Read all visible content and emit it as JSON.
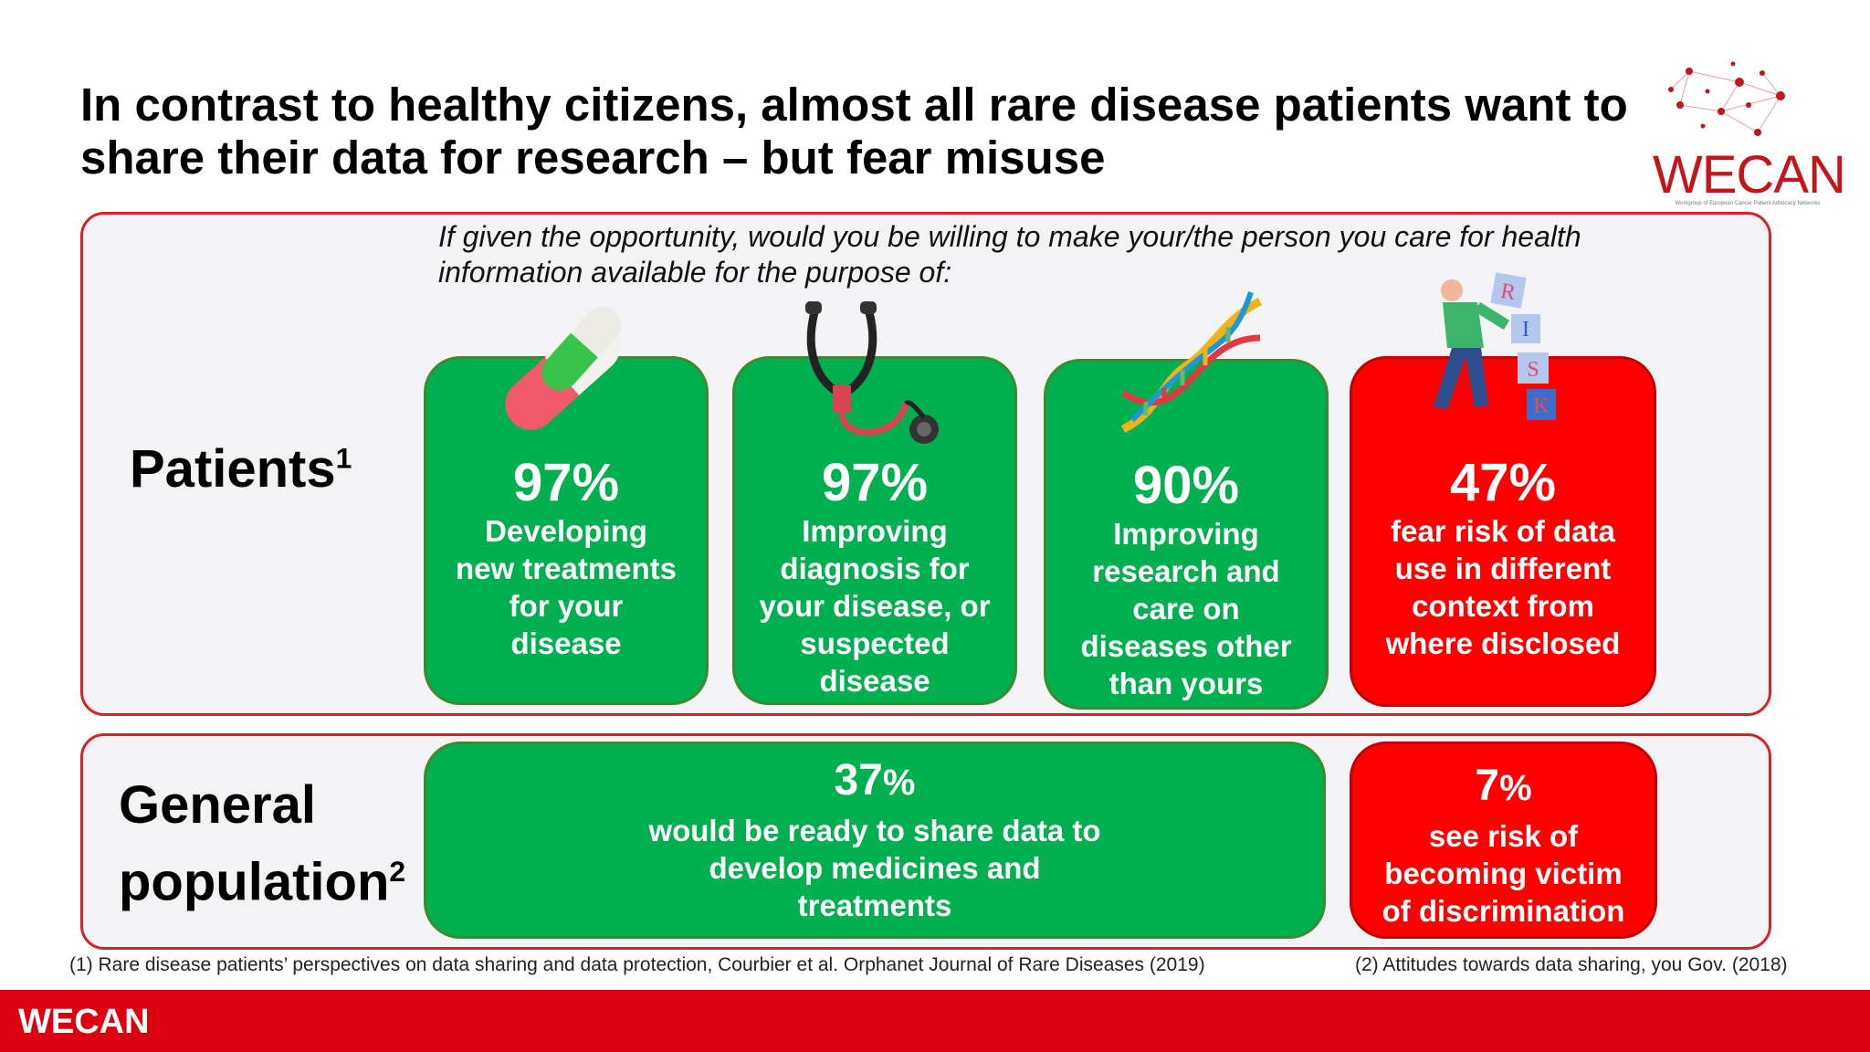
{
  "title": "In contrast to healthy citizens, almost all rare disease patients want to share their data for research – but fear misuse",
  "logo": {
    "text_main": "WECAN",
    "subtitle": "Workgroup of European Cancer Patient Advocacy Networks"
  },
  "question": "If given the opportunity, would you be willing to make your/the person you care for health information available for the purpose of:",
  "patients": {
    "label": "Patients",
    "sup": "1",
    "cards": [
      {
        "pct": "97%",
        "desc": "Developing new treatments for your disease",
        "color": "#00b050",
        "icon": "pill-capsule-icon"
      },
      {
        "pct": "97%",
        "desc": "Improving diagnosis for your disease, or suspected disease",
        "color": "#00b050",
        "icon": "stethoscope-icon"
      },
      {
        "pct": "90%",
        "desc": "Improving research and care on diseases other than yours",
        "color": "#00b050",
        "icon": "dna-icon"
      },
      {
        "pct": "47%",
        "desc": "fear risk of data use in different context from where disclosed",
        "color": "#ff0000",
        "icon": "risk-blocks-icon"
      }
    ]
  },
  "general": {
    "label_line1": "General",
    "label_line2": "population",
    "sup": "2",
    "cards": [
      {
        "pct_num": "37",
        "pct_sign": "%",
        "desc": "would be ready to share data to develop medicines and treatments",
        "color": "#00b050"
      },
      {
        "pct_num": "7",
        "pct_sign": "%",
        "desc": "see risk of becoming victim of discrimination",
        "color": "#ff0000"
      }
    ]
  },
  "footnotes": {
    "note1": "(1) Rare disease patients’ perspectives on data sharing and data protection, Courbier et al. Orphanet Journal of Rare Diseases (2019)",
    "note2": "(2) Attitudes towards data sharing, you Gov. (2018)"
  },
  "bottom_bar": {
    "text": "WECAN",
    "color": "#dd0010"
  }
}
